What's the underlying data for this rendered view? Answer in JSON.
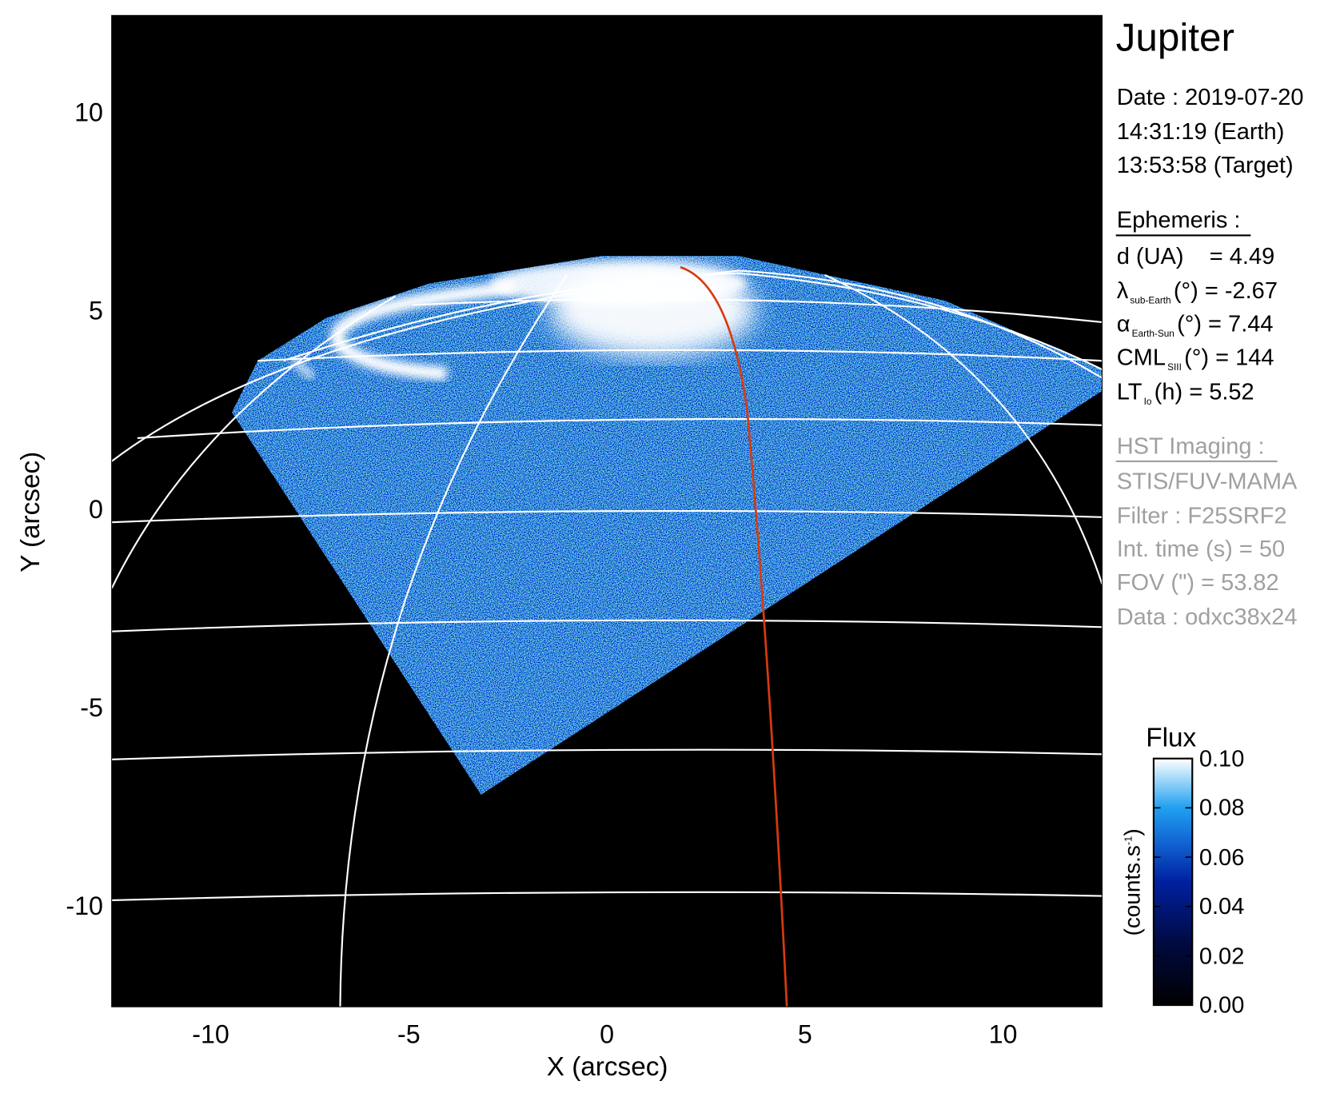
{
  "chart_data": {
    "type": "heatmap",
    "xlabel": "X (arcsec)",
    "ylabel": "Y (arcsec)",
    "xlim": [
      -12.5,
      12.5
    ],
    "ylim": [
      -12.5,
      12.5
    ],
    "xticks": [
      "-10",
      "-5",
      "0",
      "5",
      "10"
    ],
    "xtick_values": [
      -10,
      -5,
      0,
      5,
      10
    ],
    "yticks": [
      "10",
      "5",
      "0",
      "-5",
      "-10"
    ],
    "ytick_values": [
      10,
      5,
      0,
      -5,
      -10
    ],
    "grid": "planetographic latitude/longitude grid (white)",
    "colors": {
      "background": "#000000",
      "grid": "#ffffff",
      "reference_meridian": "#d83a10"
    },
    "colorbar": {
      "title": "Flux",
      "label": "(counts.s",
      "label_sup": "-1",
      "label_end": ")",
      "range": [
        0.0,
        0.1
      ],
      "ticks": [
        "0.10",
        "0.08",
        "0.06",
        "0.04",
        "0.02",
        "0.00"
      ],
      "tick_values": [
        0.1,
        0.08,
        0.06,
        0.04,
        0.02,
        0.0
      ],
      "colormap": [
        "#000000",
        "#000a40",
        "#0020a0",
        "#1060d0",
        "#20a0f0",
        "#ffffff"
      ]
    }
  },
  "info": {
    "target": "Jupiter",
    "date": "Date : 2019-07-20",
    "time_earth": "14:31:19 (Earth)",
    "time_target": "13:53:58 (Target)",
    "ephemeris_title": "Ephemeris :",
    "d": {
      "label": "d (UA)",
      "value": "= 4.49"
    },
    "lat": {
      "symbol": "λ",
      "sub": "sub-Earth",
      "unit": "(°) = -2.67"
    },
    "phase": {
      "symbol": "α",
      "sub": "Earth-Sun",
      "unit": "(°) = 7.44"
    },
    "cml": {
      "symbol": "CML",
      "sub": "SIII",
      "unit": "(°) = 144"
    },
    "lt": {
      "symbol": "LT",
      "sub": "Io",
      "unit": "(h) = 5.52"
    },
    "imaging_title": "HST Imaging :",
    "instrument": "STIS/FUV-MAMA",
    "filter": "Filter : F25SRF2",
    "int_time": "Int. time (s) = 50",
    "fov": "FOV (\") = 53.82",
    "dataset": "Data : odxc38x24"
  }
}
